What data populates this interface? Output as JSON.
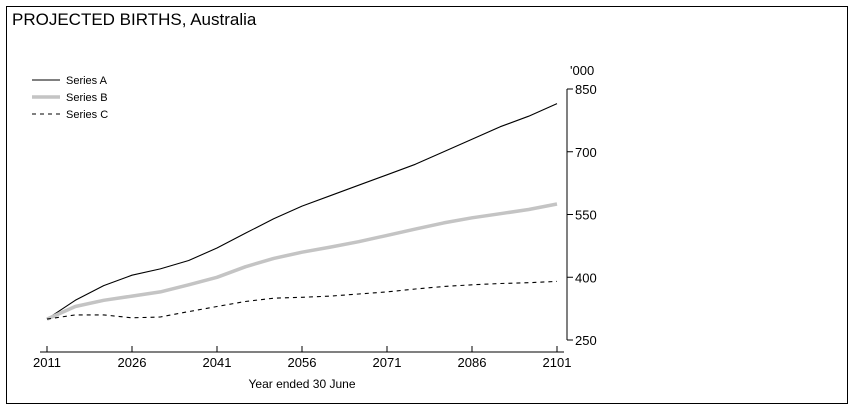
{
  "chart_data": {
    "type": "line",
    "title": "PROJECTED BIRTHS, Australia",
    "xlabel": "Year ended 30 June",
    "ylabel": "",
    "y_unit": "'000",
    "xlim": [
      2011,
      2101
    ],
    "ylim": [
      250,
      850
    ],
    "x_ticks": [
      "2011",
      "2026",
      "2041",
      "2056",
      "2071",
      "2086",
      "2101"
    ],
    "y_ticks": [
      "250",
      "400",
      "550",
      "700",
      "850"
    ],
    "y_axis_side": "right",
    "grid": false,
    "legend_position": "top-left",
    "x": [
      2011,
      2016,
      2021,
      2026,
      2031,
      2036,
      2041,
      2046,
      2051,
      2056,
      2061,
      2066,
      2071,
      2076,
      2081,
      2086,
      2091,
      2096,
      2101
    ],
    "series": [
      {
        "name": "Series A",
        "style": "solid",
        "color": "#000000",
        "values": [
          300,
          345,
          380,
          405,
          420,
          440,
          470,
          505,
          540,
          570,
          595,
          620,
          645,
          670,
          700,
          730,
          760,
          785,
          815
        ]
      },
      {
        "name": "Series B",
        "style": "solid-thick",
        "color": "#c4c4c4",
        "values": [
          300,
          330,
          345,
          355,
          365,
          382,
          400,
          425,
          445,
          460,
          472,
          485,
          500,
          515,
          530,
          542,
          552,
          562,
          575
        ]
      },
      {
        "name": "Series C",
        "style": "dashed",
        "color": "#000000",
        "values": [
          300,
          310,
          310,
          303,
          305,
          318,
          330,
          342,
          350,
          352,
          355,
          360,
          365,
          372,
          378,
          382,
          385,
          387,
          390
        ]
      }
    ]
  }
}
